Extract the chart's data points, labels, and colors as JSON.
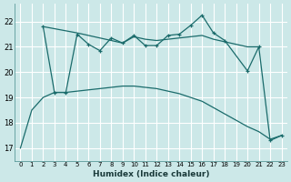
{
  "xlabel": "Humidex (Indice chaleur)",
  "background_color": "#cce8e8",
  "grid_color": "#ffffff",
  "line_color": "#1a6b6b",
  "ylim": [
    16.5,
    22.7
  ],
  "yticks": [
    17,
    18,
    19,
    20,
    21,
    22
  ],
  "xticks": [
    0,
    1,
    2,
    3,
    4,
    5,
    6,
    7,
    8,
    9,
    10,
    11,
    12,
    13,
    14,
    15,
    16,
    17,
    18,
    19,
    20,
    21,
    22,
    23
  ],
  "jagged_x": [
    2,
    3,
    4,
    5,
    6,
    7,
    8,
    9,
    10,
    11,
    12,
    13,
    14,
    15,
    16,
    17,
    18,
    20,
    21,
    22,
    23
  ],
  "jagged_y": [
    21.8,
    19.2,
    19.2,
    21.5,
    21.1,
    20.85,
    21.35,
    21.15,
    21.45,
    21.05,
    21.05,
    21.45,
    21.5,
    21.85,
    22.25,
    21.55,
    21.25,
    20.05,
    21.0,
    17.3,
    17.5
  ],
  "smooth_x": [
    2,
    5,
    6,
    7,
    8,
    9,
    10,
    11,
    12,
    13,
    14,
    15,
    16,
    17,
    18,
    19,
    20,
    21
  ],
  "smooth_y": [
    21.8,
    21.55,
    21.45,
    21.35,
    21.25,
    21.15,
    21.4,
    21.3,
    21.25,
    21.3,
    21.35,
    21.4,
    21.45,
    21.3,
    21.2,
    21.1,
    21.0,
    21.0
  ],
  "lower_x": [
    0,
    1,
    2,
    3,
    4,
    5,
    6,
    7,
    8,
    9,
    10,
    11,
    12,
    13,
    14,
    15,
    16,
    17,
    18,
    19,
    20,
    21,
    22,
    23
  ],
  "lower_y": [
    17.0,
    18.5,
    19.0,
    19.2,
    19.2,
    19.25,
    19.3,
    19.35,
    19.4,
    19.45,
    19.45,
    19.4,
    19.35,
    19.25,
    19.15,
    19.0,
    18.85,
    18.6,
    18.35,
    18.1,
    17.85,
    17.65,
    17.35,
    17.5
  ]
}
